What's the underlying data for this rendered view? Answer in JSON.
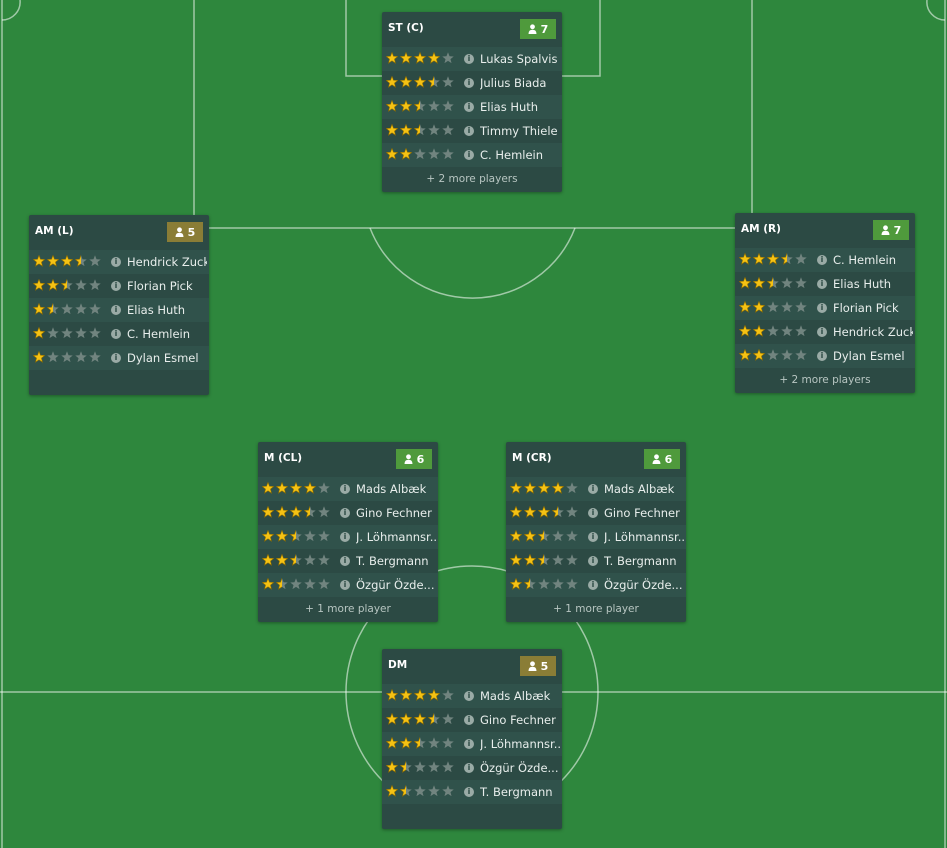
{
  "positions": [
    {
      "label": "ST (C)",
      "count": 7,
      "badge_color": "#4f9a3c",
      "players": [
        {
          "name": "Lukas Spalvis",
          "stars": 4
        },
        {
          "name": "Julius Biada",
          "stars": 3.5
        },
        {
          "name": "Elias Huth",
          "stars": 2.5
        },
        {
          "name": "Timmy Thiele",
          "stars": 2.5
        },
        {
          "name": "C. Hemlein",
          "stars": 2
        }
      ],
      "more": "+ 2 more players"
    },
    {
      "label": "AM (L)",
      "count": 5,
      "badge_color": "#8a7d36",
      "players": [
        {
          "name": "Hendrick Zuck",
          "stars": 3.5
        },
        {
          "name": "Florian Pick",
          "stars": 2.5
        },
        {
          "name": "Elias Huth",
          "stars": 1.5
        },
        {
          "name": "C. Hemlein",
          "stars": 1
        },
        {
          "name": "Dylan Esmel",
          "stars": 1
        }
      ]
    },
    {
      "label": "AM (R)",
      "count": 7,
      "badge_color": "#4f9a3c",
      "players": [
        {
          "name": "C. Hemlein",
          "stars": 3.5
        },
        {
          "name": "Elias Huth",
          "stars": 2.5
        },
        {
          "name": "Florian Pick",
          "stars": 2
        },
        {
          "name": "Hendrick Zuck",
          "stars": 2
        },
        {
          "name": "Dylan Esmel",
          "stars": 2
        }
      ],
      "more": "+ 2 more players"
    },
    {
      "label": "M (CL)",
      "count": 6,
      "badge_color": "#4f9a3c",
      "players": [
        {
          "name": "Mads Albæk",
          "stars": 4
        },
        {
          "name": "Gino Fechner",
          "stars": 3.5
        },
        {
          "name": "J. Löhmannsr...",
          "stars": 2.5
        },
        {
          "name": "T. Bergmann",
          "stars": 2.5
        },
        {
          "name": "Özgür Özde...",
          "stars": 1.5
        }
      ],
      "more": "+ 1 more player"
    },
    {
      "label": "M (CR)",
      "count": 6,
      "badge_color": "#4f9a3c",
      "players": [
        {
          "name": "Mads Albæk",
          "stars": 4
        },
        {
          "name": "Gino Fechner",
          "stars": 3.5
        },
        {
          "name": "J. Löhmannsr...",
          "stars": 2.5
        },
        {
          "name": "T. Bergmann",
          "stars": 2.5
        },
        {
          "name": "Özgür Özde...",
          "stars": 1.5
        }
      ],
      "more": "+ 1 more player"
    },
    {
      "label": "DM",
      "count": 5,
      "badge_color": "#8a7d36",
      "players": [
        {
          "name": "Mads Albæk",
          "stars": 4
        },
        {
          "name": "Gino Fechner",
          "stars": 3.5
        },
        {
          "name": "J. Löhmannsr...",
          "stars": 2.5
        },
        {
          "name": "Özgür Özde...",
          "stars": 1.5
        },
        {
          "name": "T. Bergmann",
          "stars": 1.5
        }
      ]
    }
  ]
}
